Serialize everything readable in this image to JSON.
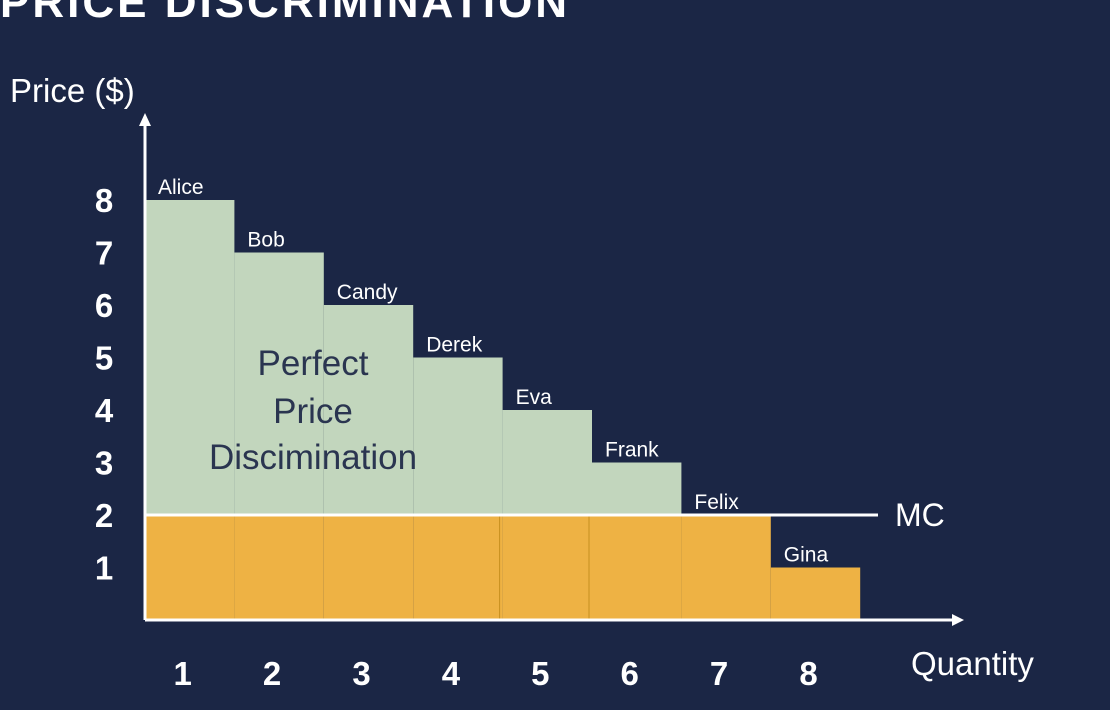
{
  "slide": {
    "title": "PRICE DISCRIMINATION"
  },
  "colors": {
    "background": "#1b2645",
    "surplus": "#c2d6bd",
    "cost": "#eeb244",
    "axis": "#ffffff",
    "text": "#ffffff",
    "surplus_text": "#2a3550"
  },
  "chart_data": {
    "type": "bar",
    "title": "",
    "xlabel": "Quantity",
    "ylabel": "Price ($)",
    "x_ticks": [
      "1",
      "2",
      "3",
      "4",
      "5",
      "6",
      "7",
      "8"
    ],
    "y_ticks": [
      "1",
      "2",
      "3",
      "4",
      "5",
      "6",
      "7",
      "8"
    ],
    "xlim": [
      0,
      8
    ],
    "ylim": [
      0,
      8
    ],
    "categories": [
      "Alice",
      "Bob",
      "Candy",
      "Derek",
      "Eva",
      "Frank",
      "Felix",
      "Gina"
    ],
    "values": [
      8,
      7,
      6,
      5,
      4,
      3,
      2,
      1
    ],
    "marginal_cost": {
      "label": "MC",
      "value": 2
    },
    "annotation": [
      "Perfect",
      "Price",
      "Discimination"
    ],
    "grid": false
  }
}
